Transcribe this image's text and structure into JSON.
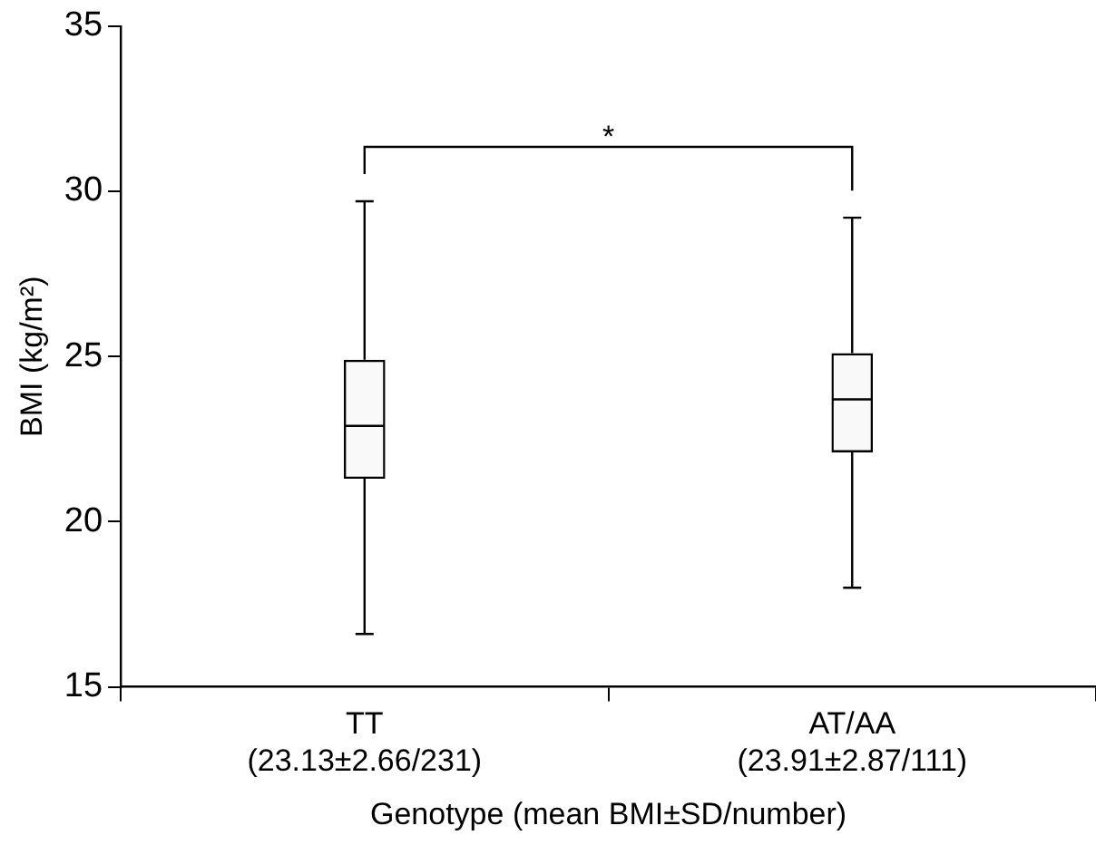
{
  "chart_data": {
    "type": "box",
    "categories": [
      "TT\n(23.13±2.66/231)",
      "AT/AA\n(23.91±2.87/111)"
    ],
    "boxes": [
      {
        "low": 16.6,
        "q1": 21.3,
        "median": 22.9,
        "q3": 24.9,
        "high": 29.7
      },
      {
        "low": 18.0,
        "q1": 22.1,
        "median": 23.7,
        "q3": 25.1,
        "high": 29.2
      }
    ],
    "color": "#000000",
    "xlabel": "Genotype (mean BMI±SD/number)",
    "ylabel": "BMI (kg/m²)",
    "ylim": [
      15,
      35
    ],
    "yticks": [
      15,
      20,
      25,
      30,
      35
    ],
    "grid": false,
    "legend": false,
    "annotations": [
      "*"
    ]
  }
}
